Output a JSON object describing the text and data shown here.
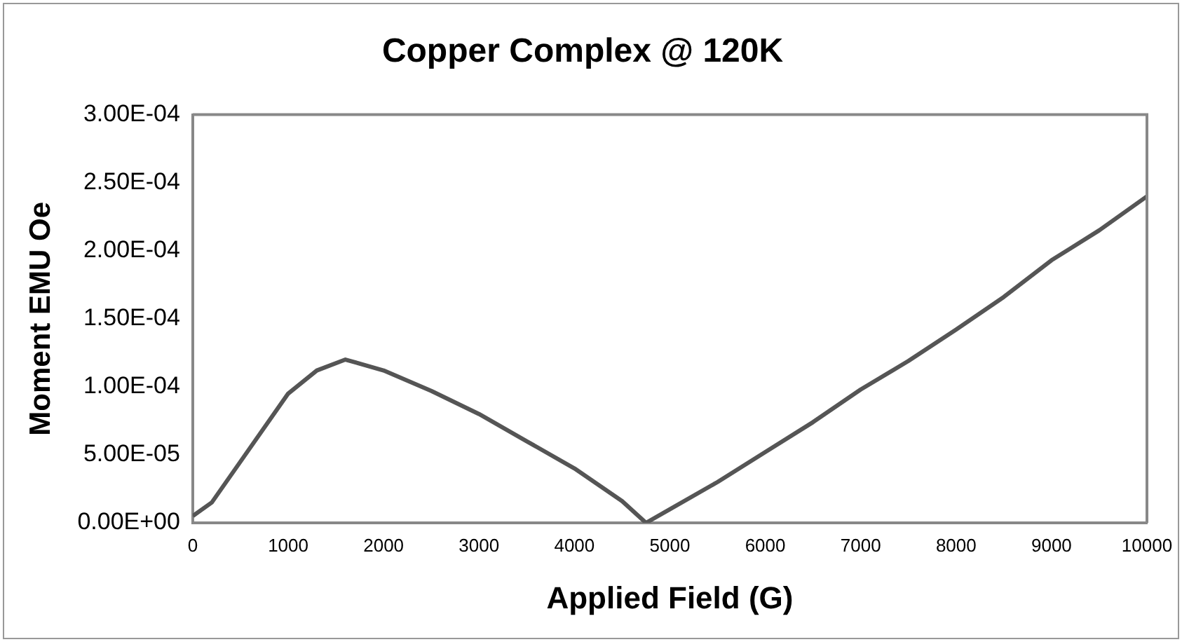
{
  "chart_data": {
    "type": "line",
    "title": "Copper Complex @ 120K",
    "xlabel": "Applied Field (G)",
    "ylabel": "Moment EMU Oe",
    "x": [
      0,
      200,
      500,
      1000,
      1300,
      1600,
      2000,
      2500,
      3000,
      3500,
      4000,
      4500,
      4750,
      5000,
      5500,
      6000,
      6500,
      7000,
      7500,
      8000,
      8500,
      9000,
      9500,
      10000
    ],
    "series": [
      {
        "color": "#555555",
        "values": [
          5e-06,
          1.5e-05,
          4.5e-05,
          9.5e-05,
          0.000112,
          0.00012,
          0.000112,
          9.7e-05,
          8e-05,
          6e-05,
          4e-05,
          1.6e-05,
          0,
          1e-05,
          3e-05,
          5.2e-05,
          7.4e-05,
          9.8e-05,
          0.000119,
          0.000142,
          0.000166,
          0.000193,
          0.000215,
          0.00024
        ]
      }
    ],
    "xlim": [
      0,
      10000
    ],
    "xticks": [
      0,
      1000,
      2000,
      3000,
      4000,
      5000,
      6000,
      7000,
      8000,
      9000,
      10000
    ],
    "ylim": [
      0,
      0.0003
    ],
    "yticks": [
      {
        "value": 0,
        "label": "0.00E+00"
      },
      {
        "value": 5e-05,
        "label": "5.00E-05"
      },
      {
        "value": 0.0001,
        "label": "1.00E-04"
      },
      {
        "value": 0.00015,
        "label": "1.50E-04"
      },
      {
        "value": 0.0002,
        "label": "2.00E-04"
      },
      {
        "value": 0.00025,
        "label": "2.50E-04"
      },
      {
        "value": 0.0003,
        "label": "3.00E-04"
      }
    ],
    "grid": false,
    "legend": false,
    "marker": "none",
    "line_style": "solid"
  }
}
